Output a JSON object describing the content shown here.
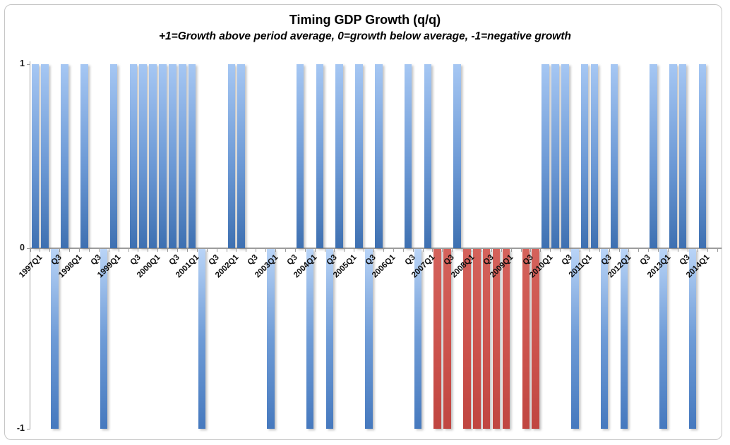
{
  "chart_data": {
    "type": "bar",
    "title": "Timing GDP Growth (q/q)",
    "subtitle": "+1=Growth above period average, 0=growth below average, -1=negative growth",
    "ylabel": "",
    "xlabel": "",
    "ylim": [
      -1,
      1
    ],
    "yticks": [
      {
        "label": "1",
        "value": 1
      },
      {
        "label": "0",
        "value": 0
      },
      {
        "label": "-1",
        "value": -1
      }
    ],
    "grid": false,
    "legend_position": "none",
    "x_tick_label_rule": "every second quarter; Q1 shown as YYYYQ1, Q3 shown as Q3, rotated 45 degrees",
    "colors": {
      "bar_blue_light": "#a6c7f3",
      "bar_blue_dark": "#3e70b1",
      "bar_red_light": "#d4625b",
      "bar_red_dark": "#c04641",
      "axis_gray": "#9c9c9c",
      "frame_gray": "#c6c6c6"
    },
    "quarters": [
      {
        "q": "1997Q1",
        "v": 1,
        "c": "blue"
      },
      {
        "q": "1997Q2",
        "v": 1,
        "c": "blue"
      },
      {
        "q": "1997Q3",
        "v": -1,
        "c": "blue"
      },
      {
        "q": "1997Q4",
        "v": 1,
        "c": "blue"
      },
      {
        "q": "1998Q1",
        "v": 0,
        "c": "none"
      },
      {
        "q": "1998Q2",
        "v": 1,
        "c": "blue"
      },
      {
        "q": "1998Q3",
        "v": 0,
        "c": "none"
      },
      {
        "q": "1998Q4",
        "v": -1,
        "c": "blue"
      },
      {
        "q": "1999Q1",
        "v": 1,
        "c": "blue"
      },
      {
        "q": "1999Q2",
        "v": 0,
        "c": "none"
      },
      {
        "q": "1999Q3",
        "v": 1,
        "c": "blue"
      },
      {
        "q": "1999Q4",
        "v": 1,
        "c": "blue"
      },
      {
        "q": "2000Q1",
        "v": 1,
        "c": "blue"
      },
      {
        "q": "2000Q2",
        "v": 1,
        "c": "blue"
      },
      {
        "q": "2000Q3",
        "v": 1,
        "c": "blue"
      },
      {
        "q": "2000Q4",
        "v": 1,
        "c": "blue"
      },
      {
        "q": "2001Q1",
        "v": 1,
        "c": "blue"
      },
      {
        "q": "2001Q2",
        "v": -1,
        "c": "blue"
      },
      {
        "q": "2001Q3",
        "v": 0,
        "c": "none"
      },
      {
        "q": "2001Q4",
        "v": 0,
        "c": "none"
      },
      {
        "q": "2002Q1",
        "v": 1,
        "c": "blue"
      },
      {
        "q": "2002Q2",
        "v": 1,
        "c": "blue"
      },
      {
        "q": "2002Q3",
        "v": 0,
        "c": "none"
      },
      {
        "q": "2002Q4",
        "v": 0,
        "c": "none"
      },
      {
        "q": "2003Q1",
        "v": -1,
        "c": "blue"
      },
      {
        "q": "2003Q2",
        "v": 0,
        "c": "none"
      },
      {
        "q": "2003Q3",
        "v": 0,
        "c": "none"
      },
      {
        "q": "2003Q4",
        "v": 1,
        "c": "blue"
      },
      {
        "q": "2004Q1",
        "v": -1,
        "c": "blue"
      },
      {
        "q": "2004Q2",
        "v": 1,
        "c": "blue"
      },
      {
        "q": "2004Q3",
        "v": -1,
        "c": "blue"
      },
      {
        "q": "2004Q4",
        "v": 1,
        "c": "blue"
      },
      {
        "q": "2005Q1",
        "v": 0,
        "c": "none"
      },
      {
        "q": "2005Q2",
        "v": 1,
        "c": "blue"
      },
      {
        "q": "2005Q3",
        "v": -1,
        "c": "blue"
      },
      {
        "q": "2005Q4",
        "v": 1,
        "c": "blue"
      },
      {
        "q": "2006Q1",
        "v": 0,
        "c": "none"
      },
      {
        "q": "2006Q2",
        "v": 0,
        "c": "none"
      },
      {
        "q": "2006Q3",
        "v": 1,
        "c": "blue"
      },
      {
        "q": "2006Q4",
        "v": -1,
        "c": "blue"
      },
      {
        "q": "2007Q1",
        "v": 1,
        "c": "blue"
      },
      {
        "q": "2007Q2",
        "v": -1,
        "c": "red"
      },
      {
        "q": "2007Q3",
        "v": -1,
        "c": "red"
      },
      {
        "q": "2007Q4",
        "v": 1,
        "c": "blue"
      },
      {
        "q": "2008Q1",
        "v": -1,
        "c": "red"
      },
      {
        "q": "2008Q2",
        "v": -1,
        "c": "red"
      },
      {
        "q": "2008Q3",
        "v": -1,
        "c": "red"
      },
      {
        "q": "2008Q4",
        "v": -1,
        "c": "red"
      },
      {
        "q": "2009Q1",
        "v": -1,
        "c": "red"
      },
      {
        "q": "2009Q2",
        "v": 0,
        "c": "none"
      },
      {
        "q": "2009Q3",
        "v": -1,
        "c": "red"
      },
      {
        "q": "2009Q4",
        "v": -1,
        "c": "red"
      },
      {
        "q": "2010Q1",
        "v": 1,
        "c": "blue"
      },
      {
        "q": "2010Q2",
        "v": 1,
        "c": "blue"
      },
      {
        "q": "2010Q3",
        "v": 1,
        "c": "blue"
      },
      {
        "q": "2010Q4",
        "v": -1,
        "c": "blue"
      },
      {
        "q": "2011Q1",
        "v": 1,
        "c": "blue"
      },
      {
        "q": "2011Q2",
        "v": 1,
        "c": "blue"
      },
      {
        "q": "2011Q3",
        "v": -1,
        "c": "blue"
      },
      {
        "q": "2011Q4",
        "v": 1,
        "c": "blue"
      },
      {
        "q": "2012Q1",
        "v": -1,
        "c": "blue"
      },
      {
        "q": "2012Q2",
        "v": 0,
        "c": "none"
      },
      {
        "q": "2012Q3",
        "v": 0,
        "c": "none"
      },
      {
        "q": "2012Q4",
        "v": 1,
        "c": "blue"
      },
      {
        "q": "2013Q1",
        "v": -1,
        "c": "blue"
      },
      {
        "q": "2013Q2",
        "v": 1,
        "c": "blue"
      },
      {
        "q": "2013Q3",
        "v": 1,
        "c": "blue"
      },
      {
        "q": "2013Q4",
        "v": -1,
        "c": "blue"
      },
      {
        "q": "2014Q1",
        "v": 1,
        "c": "blue"
      },
      {
        "q": "2014Q2",
        "v": 0,
        "c": "none"
      }
    ]
  }
}
